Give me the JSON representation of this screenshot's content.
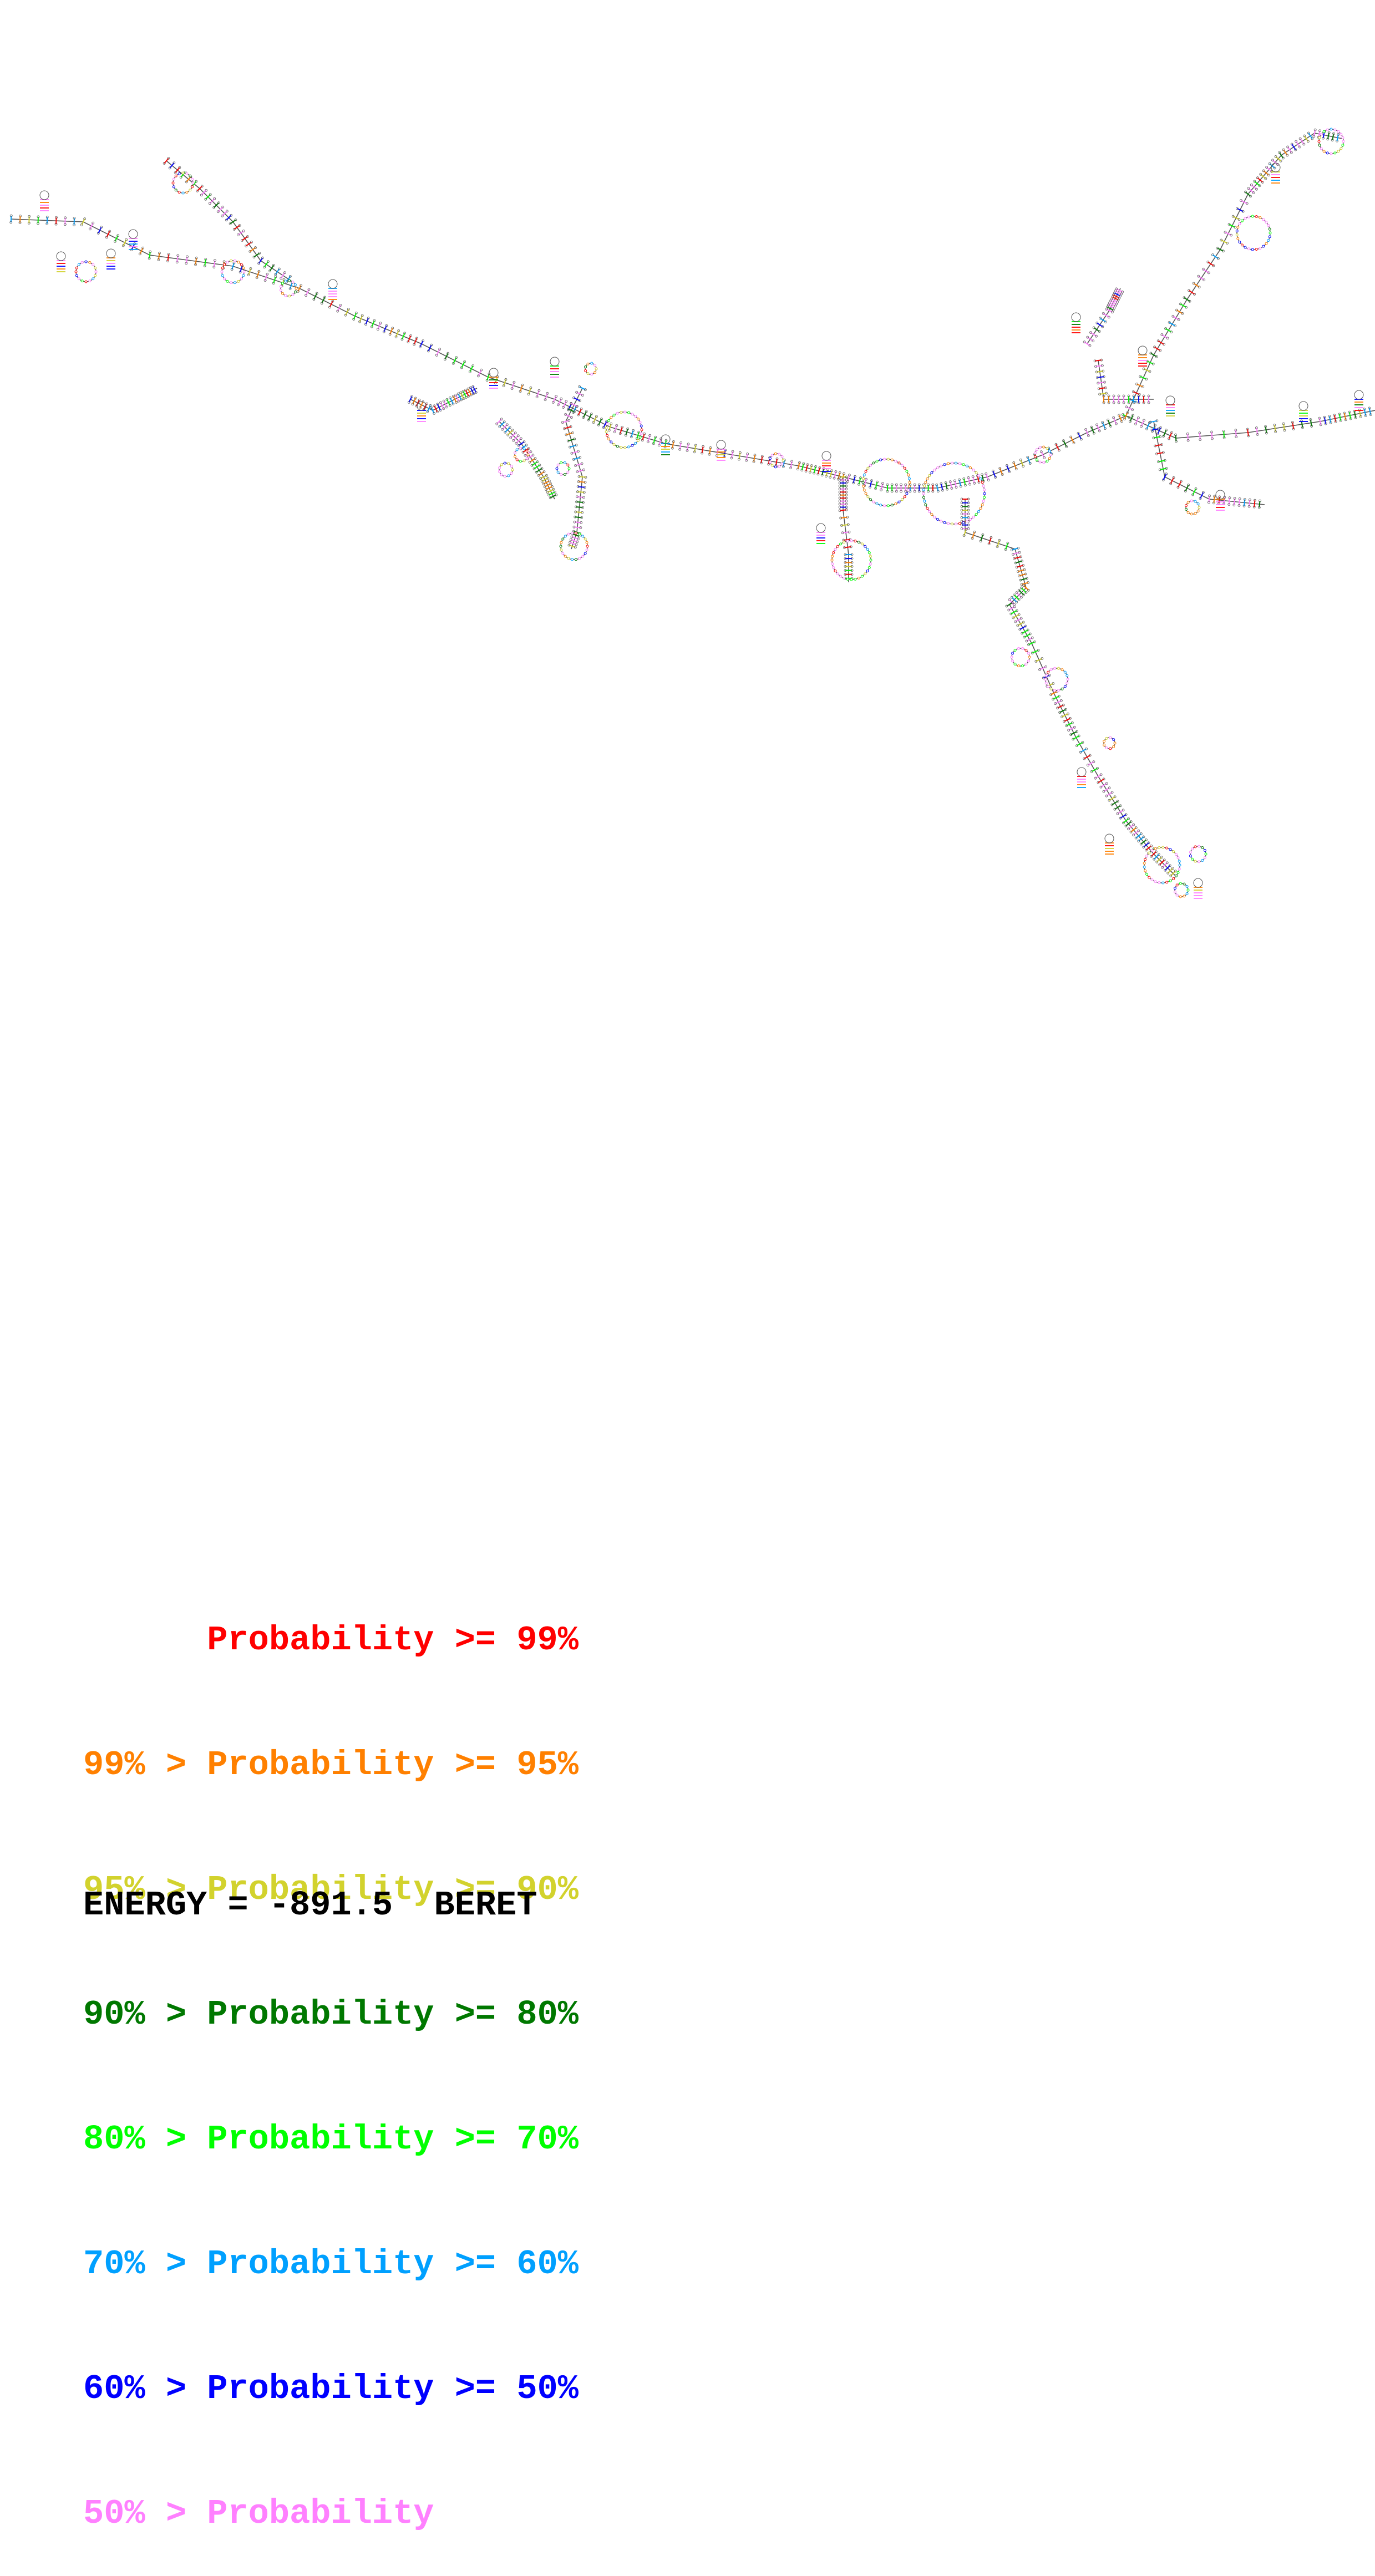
{
  "legend": [
    {
      "text": "      Probability >= 99%",
      "color": "#ff0000"
    },
    {
      "text": "99% > Probability >= 95%",
      "color": "#ff8000"
    },
    {
      "text": "95% > Probability >= 90%",
      "color": "#d2d22d"
    },
    {
      "text": "90% > Probability >= 80%",
      "color": "#007800"
    },
    {
      "text": "80% > Probability >= 70%",
      "color": "#00ff00"
    },
    {
      "text": "70% > Probability >= 60%",
      "color": "#00a0ff"
    },
    {
      "text": "60% > Probability >= 50%",
      "color": "#0000ff"
    },
    {
      "text": "50% > Probability",
      "color": "#ff80ff"
    }
  ],
  "energy_label": "ENERGY = -891.5  BERET",
  "palette": {
    "p99": "#ff0000",
    "p95": "#ff8000",
    "p90": "#d2d22d",
    "p80": "#007800",
    "p70": "#00ff00",
    "p60": "#00a0ff",
    "p50": "#0000ff",
    "plow": "#ff80ff",
    "backbone": "#555555"
  }
}
